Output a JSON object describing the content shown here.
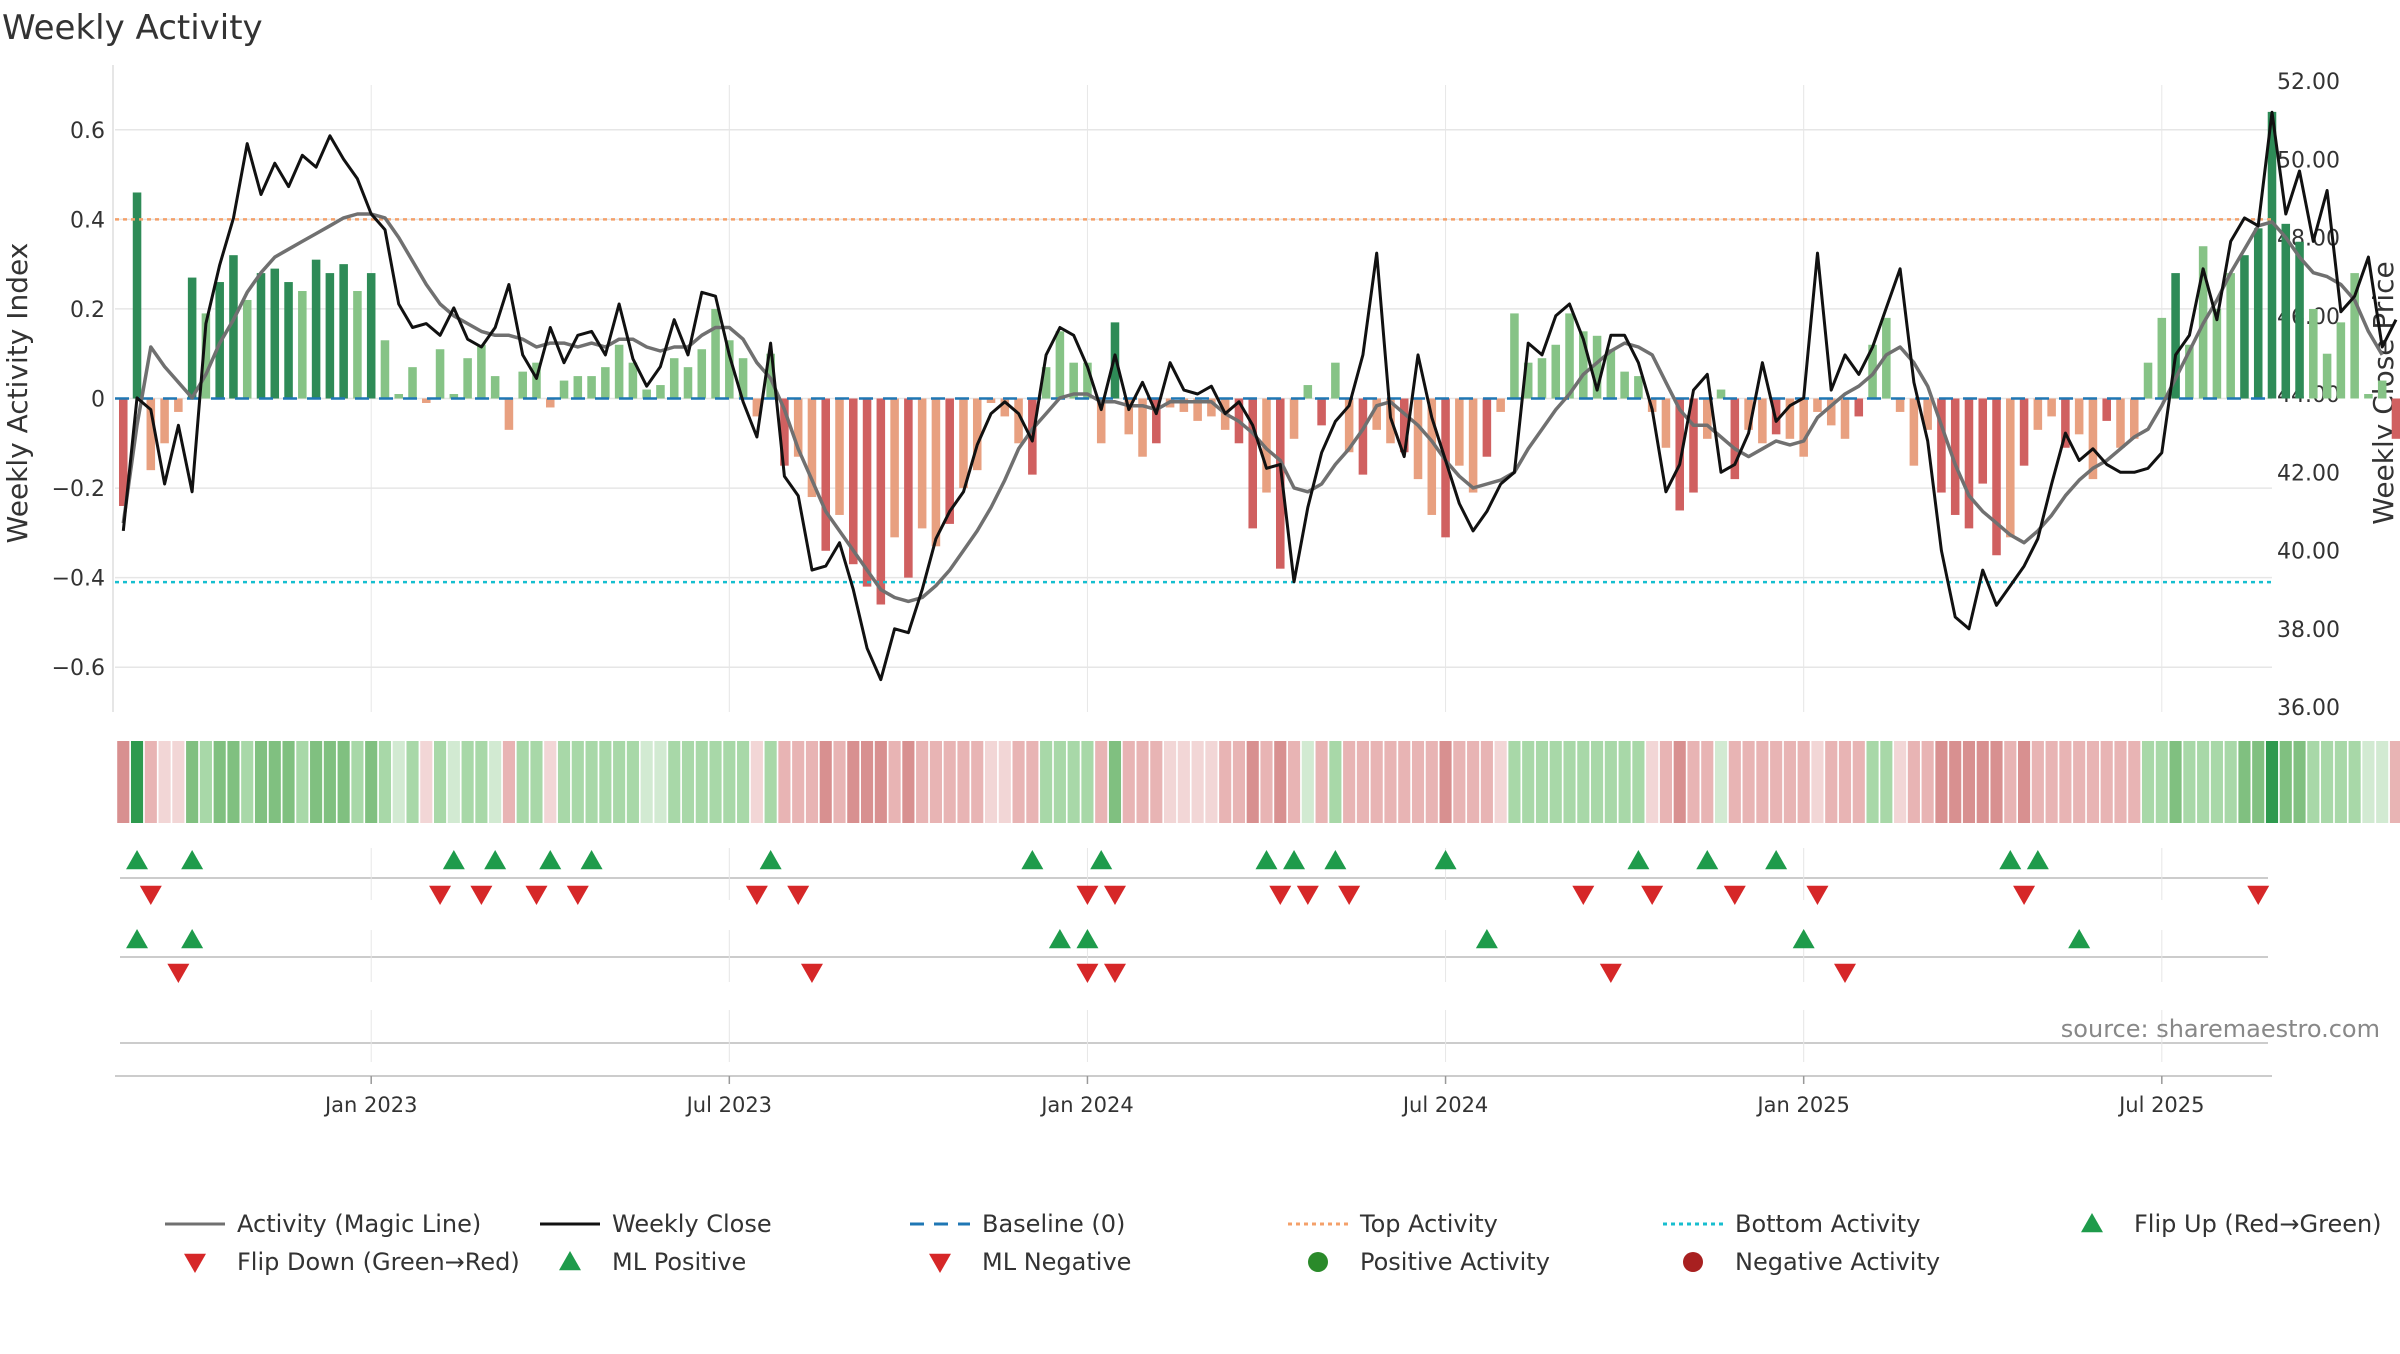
{
  "chart_data": {
    "type": "bar",
    "title": "Weekly Activity",
    "ylabel": "Weekly Activity Index",
    "y2label": "Weekly Close Price",
    "ylim": [
      -0.7,
      0.7
    ],
    "y2lim": [
      36,
      52
    ],
    "yticks": [
      0.6,
      0.4,
      0.2,
      0,
      -0.2,
      -0.4,
      -0.6
    ],
    "ytick_labels": [
      "0.6",
      "0.4",
      "0.2",
      "0",
      "−0.2",
      "−0.4",
      "−0.6"
    ],
    "y2ticks": [
      52,
      50,
      48,
      46,
      44,
      42,
      40,
      38,
      36
    ],
    "y2tick_labels": [
      "52.00",
      "50.00",
      "48.00",
      "46.00",
      "44.00",
      "42.00",
      "40.00",
      "38.00",
      "36.00"
    ],
    "xticks": [
      {
        "week": 18,
        "label": "Jan 2023"
      },
      {
        "week": 44,
        "label": "Jul 2023"
      },
      {
        "week": 70,
        "label": "Jan 2024"
      },
      {
        "week": 96,
        "label": "Jul 2024"
      },
      {
        "week": 122,
        "label": "Jan 2025"
      },
      {
        "week": 148,
        "label": "Jul 2025"
      }
    ],
    "x_range": [
      -0.6,
      156
    ],
    "top_activity": 0.4,
    "bottom_activity": -0.41,
    "activity": [
      -0.24,
      0.46,
      -0.16,
      -0.1,
      -0.03,
      0.27,
      0.19,
      0.26,
      0.32,
      0.22,
      0.28,
      0.29,
      0.26,
      0.24,
      0.31,
      0.28,
      0.3,
      0.24,
      0.28,
      0.13,
      0.01,
      0.07,
      -0.01,
      0.11,
      0.01,
      0.09,
      0.12,
      0.05,
      -0.07,
      0.06,
      0.08,
      -0.02,
      0.04,
      0.05,
      0.05,
      0.07,
      0.12,
      0.08,
      0.02,
      0.03,
      0.09,
      0.07,
      0.11,
      0.2,
      0.13,
      0.09,
      -0.04,
      0.1,
      -0.15,
      -0.13,
      -0.22,
      -0.34,
      -0.26,
      -0.37,
      -0.42,
      -0.46,
      -0.31,
      -0.4,
      -0.29,
      -0.33,
      -0.28,
      -0.2,
      -0.16,
      -0.01,
      -0.04,
      -0.1,
      -0.17,
      0.07,
      0.15,
      0.08,
      0.08,
      -0.1,
      0.17,
      -0.08,
      -0.13,
      -0.1,
      -0.02,
      -0.03,
      -0.05,
      -0.04,
      -0.07,
      -0.1,
      -0.29,
      -0.21,
      -0.38,
      -0.09,
      0.03,
      -0.06,
      0.08,
      -0.12,
      -0.17,
      -0.07,
      -0.1,
      -0.12,
      -0.18,
      -0.26,
      -0.31,
      -0.15,
      -0.21,
      -0.13,
      -0.03,
      0.19,
      0.08,
      0.09,
      0.12,
      0.19,
      0.15,
      0.14,
      0.11,
      0.06,
      0.05,
      -0.03,
      -0.11,
      -0.25,
      -0.21,
      -0.09,
      0.02,
      -0.18,
      -0.07,
      -0.1,
      -0.08,
      -0.09,
      -0.13,
      -0.03,
      -0.06,
      -0.09,
      -0.04,
      0.12,
      0.18,
      -0.03,
      -0.15,
      -0.07,
      -0.21,
      -0.26,
      -0.29,
      -0.19,
      -0.35,
      -0.31,
      -0.15,
      -0.07,
      -0.04,
      -0.11,
      -0.08,
      -0.18,
      -0.05,
      -0.11,
      -0.09,
      0.08,
      0.18,
      0.28,
      0.12,
      0.34,
      0.2,
      0.28,
      0.32,
      0.38,
      0.64,
      0.39,
      0.35,
      0.2,
      0.1,
      0.17,
      0.28,
      0.01,
      0.04,
      -0.09
    ],
    "shade_levels": [
      2,
      3,
      1,
      0,
      0,
      2,
      1,
      2,
      2,
      1,
      2,
      2,
      2,
      1,
      2,
      2,
      2,
      1,
      2,
      1,
      0,
      1,
      0,
      1,
      0,
      1,
      1,
      0,
      1,
      1,
      1,
      0,
      1,
      1,
      1,
      1,
      1,
      1,
      0,
      0,
      1,
      1,
      1,
      1,
      1,
      1,
      0,
      1,
      1,
      1,
      1,
      2,
      1,
      2,
      2,
      2,
      1,
      2,
      1,
      1,
      1,
      1,
      1,
      0,
      0,
      1,
      1,
      1,
      1,
      1,
      1,
      1,
      2,
      1,
      1,
      1,
      0,
      0,
      0,
      0,
      1,
      1,
      2,
      1,
      2,
      1,
      0,
      1,
      1,
      1,
      1,
      1,
      1,
      1,
      1,
      1,
      2,
      1,
      1,
      1,
      0,
      1,
      1,
      1,
      1,
      1,
      1,
      1,
      1,
      1,
      1,
      0,
      1,
      2,
      1,
      1,
      0,
      1,
      1,
      1,
      1,
      1,
      1,
      0,
      1,
      1,
      1,
      1,
      1,
      0,
      1,
      1,
      2,
      2,
      2,
      2,
      2,
      1,
      2,
      1,
      1,
      1,
      1,
      1,
      1,
      1,
      1,
      1,
      1,
      2,
      1,
      1,
      1,
      1,
      2,
      2,
      3,
      2,
      2,
      1,
      1,
      1,
      1,
      0,
      0,
      1
    ],
    "weekly_close": [
      40.5,
      43.9,
      43.6,
      41.7,
      43.2,
      41.5,
      45.8,
      47.3,
      48.5,
      50.4,
      49.1,
      49.9,
      49.3,
      50.1,
      49.8,
      50.6,
      50.0,
      49.5,
      48.6,
      48.2,
      46.3,
      45.7,
      45.8,
      45.5,
      46.2,
      45.4,
      45.2,
      45.7,
      46.8,
      45.0,
      44.4,
      45.7,
      44.8,
      45.5,
      45.6,
      45.0,
      46.3,
      44.9,
      44.2,
      44.7,
      45.9,
      45.0,
      46.6,
      46.5,
      45.0,
      43.8,
      42.9,
      45.3,
      41.9,
      41.4,
      39.5,
      39.6,
      40.2,
      39.0,
      37.5,
      36.7,
      38.0,
      37.9,
      39.0,
      40.3,
      41.0,
      41.5,
      42.7,
      43.5,
      43.8,
      43.5,
      42.8,
      45.0,
      45.7,
      45.5,
      44.7,
      43.6,
      45.0,
      43.6,
      44.3,
      43.5,
      44.8,
      44.1,
      44.0,
      44.2,
      43.5,
      43.8,
      43.2,
      42.1,
      42.2,
      39.2,
      41.1,
      42.5,
      43.3,
      43.7,
      45.0,
      47.6,
      43.4,
      42.4,
      45.0,
      43.4,
      42.3,
      41.2,
      40.5,
      41.0,
      41.7,
      42.0,
      45.3,
      45.0,
      46.0,
      46.3,
      45.4,
      44.1,
      45.5,
      45.5,
      44.8,
      43.6,
      41.5,
      42.2,
      44.1,
      44.5,
      42.0,
      42.2,
      43.0,
      44.8,
      43.3,
      43.7,
      43.9,
      47.6,
      44.1,
      45.0,
      44.5,
      45.2,
      46.2,
      47.2,
      44.3,
      42.8,
      40.0,
      38.3,
      38.0,
      39.5,
      38.6,
      39.1,
      39.6,
      40.3,
      41.7,
      43.0,
      42.3,
      42.6,
      42.2,
      42.0,
      42.0,
      42.1,
      42.5,
      45.0,
      45.5,
      47.2,
      45.9,
      47.9,
      48.5,
      48.3,
      51.2,
      48.6,
      49.7,
      47.9,
      49.2,
      46.1,
      46.5,
      47.5,
      45.2,
      45.9
    ],
    "magic_line": [
      40.7,
      43.2,
      45.2,
      44.7,
      44.3,
      43.9,
      44.5,
      45.3,
      45.9,
      46.6,
      47.1,
      47.5,
      47.7,
      47.9,
      48.1,
      48.3,
      48.5,
      48.6,
      48.6,
      48.5,
      48.0,
      47.4,
      46.8,
      46.3,
      46.0,
      45.8,
      45.6,
      45.5,
      45.5,
      45.4,
      45.2,
      45.3,
      45.3,
      45.2,
      45.3,
      45.2,
      45.4,
      45.4,
      45.2,
      45.1,
      45.2,
      45.2,
      45.5,
      45.7,
      45.7,
      45.4,
      44.8,
      44.4,
      43.6,
      42.6,
      41.8,
      41.0,
      40.5,
      40.0,
      39.5,
      39.0,
      38.8,
      38.7,
      38.8,
      39.1,
      39.5,
      40.0,
      40.5,
      41.1,
      41.8,
      42.6,
      43.1,
      43.5,
      43.9,
      44.0,
      44.0,
      43.8,
      43.8,
      43.7,
      43.7,
      43.6,
      43.8,
      43.8,
      43.8,
      43.8,
      43.5,
      43.3,
      43.0,
      42.6,
      42.3,
      41.6,
      41.5,
      41.7,
      42.2,
      42.6,
      43.1,
      43.7,
      43.8,
      43.5,
      43.2,
      42.8,
      42.3,
      41.9,
      41.6,
      41.7,
      41.8,
      42.0,
      42.6,
      43.1,
      43.6,
      44.0,
      44.5,
      44.8,
      45.1,
      45.3,
      45.2,
      45.0,
      44.3,
      43.6,
      43.2,
      43.2,
      42.9,
      42.6,
      42.4,
      42.6,
      42.8,
      42.7,
      42.8,
      43.4,
      43.7,
      44.0,
      44.2,
      44.5,
      45.0,
      45.2,
      44.8,
      44.2,
      43.2,
      42.2,
      41.4,
      41.0,
      40.7,
      40.4,
      40.2,
      40.5,
      40.9,
      41.4,
      41.8,
      42.1,
      42.3,
      42.6,
      42.9,
      43.1,
      43.7,
      44.4,
      45.1,
      45.8,
      46.4,
      47.1,
      47.7,
      48.3,
      48.4,
      48.0,
      47.5,
      47.1,
      47.0,
      46.8,
      46.4,
      45.6,
      45.0
    ],
    "flip_up_weeks": [
      1,
      5,
      24,
      27,
      31,
      34,
      47,
      66,
      71,
      83,
      85,
      88,
      96,
      110,
      115,
      120,
      137,
      139
    ],
    "flip_down_weeks": [
      2,
      23,
      26,
      30,
      33,
      46,
      49,
      70,
      72,
      84,
      86,
      89,
      106,
      111,
      117,
      123,
      138,
      155
    ],
    "ml_positive_weeks": [
      1,
      5,
      68,
      70,
      99,
      122,
      142
    ],
    "ml_negative_weeks": [
      4,
      50,
      70,
      72,
      108,
      125
    ],
    "positive_activity_weeks": [],
    "negative_activity_weeks": [],
    "source": "source: sharemaestro.com",
    "colors": {
      "bar_pos_strong": "#2e8b57",
      "bar_pos_weak": "#86c386",
      "bar_neg_strong": "#d06060",
      "bar_neg_weak": "#e8a080",
      "magic_line": "#707070",
      "close_line": "#111111",
      "baseline": "#1f77b4",
      "top_activity": "#f4a06a",
      "bottom_activity": "#17becf",
      "flip_up": "#1e9b4b",
      "flip_down": "#d62728",
      "grid": "#e6e6e6",
      "axis_text": "#333333",
      "source_text": "#888888"
    },
    "legend": [
      {
        "label": "Activity (Magic Line)",
        "kind": "line",
        "color": "#707070",
        "dash": ""
      },
      {
        "label": "Weekly Close",
        "kind": "line",
        "color": "#111111",
        "dash": ""
      },
      {
        "label": "Baseline (0)",
        "kind": "line",
        "color": "#1f77b4",
        "dash": "14,10"
      },
      {
        "label": "Top Activity",
        "kind": "line",
        "color": "#f4a06a",
        "dash": "4,4"
      },
      {
        "label": "Bottom Activity",
        "kind": "line",
        "color": "#17becf",
        "dash": "4,4"
      },
      {
        "label": "Flip Up (Red→Green)",
        "kind": "tri-up",
        "color": "#1e9b4b"
      },
      {
        "label": "Flip Down (Green→Red)",
        "kind": "tri-down",
        "color": "#d62728"
      },
      {
        "label": "ML Positive",
        "kind": "tri-up",
        "color": "#1e9b4b"
      },
      {
        "label": "ML Negative",
        "kind": "tri-down",
        "color": "#d62728"
      },
      {
        "label": "Positive Activity",
        "kind": "dot",
        "color": "#2a8a2a"
      },
      {
        "label": "Negative Activity",
        "kind": "dot",
        "color": "#a82020"
      }
    ]
  }
}
